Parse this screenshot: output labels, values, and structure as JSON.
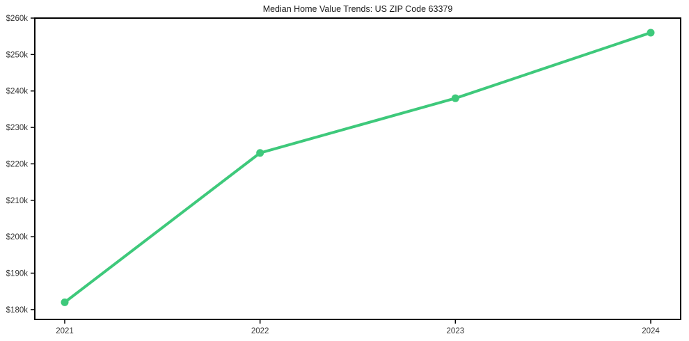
{
  "figure": {
    "background": "#ffffff"
  },
  "chart_data": {
    "type": "line",
    "title": "Median Home Value Trends: US ZIP Code 63379",
    "categories": [
      "2021",
      "2022",
      "2023",
      "2024"
    ],
    "values": [
      182000,
      223000,
      238000,
      256000
    ],
    "xlabel": "",
    "ylabel": "",
    "ylim": [
      177300,
      260000
    ],
    "y_ticks": [
      {
        "value": 180000,
        "label": "$180k"
      },
      {
        "value": 190000,
        "label": "$190k"
      },
      {
        "value": 200000,
        "label": "$200k"
      },
      {
        "value": 210000,
        "label": "$210k"
      },
      {
        "value": 220000,
        "label": "$220k"
      },
      {
        "value": 230000,
        "label": "$230k"
      },
      {
        "value": 240000,
        "label": "$240k"
      },
      {
        "value": 250000,
        "label": "$250k"
      },
      {
        "value": 260000,
        "label": "$260k"
      }
    ],
    "grid": false,
    "legend": false,
    "colors": {
      "line": "#3ec97b",
      "marker": "#3ec97b",
      "spine": "#000000",
      "tick_label": "#333333",
      "title": "#1a1a1a"
    }
  }
}
